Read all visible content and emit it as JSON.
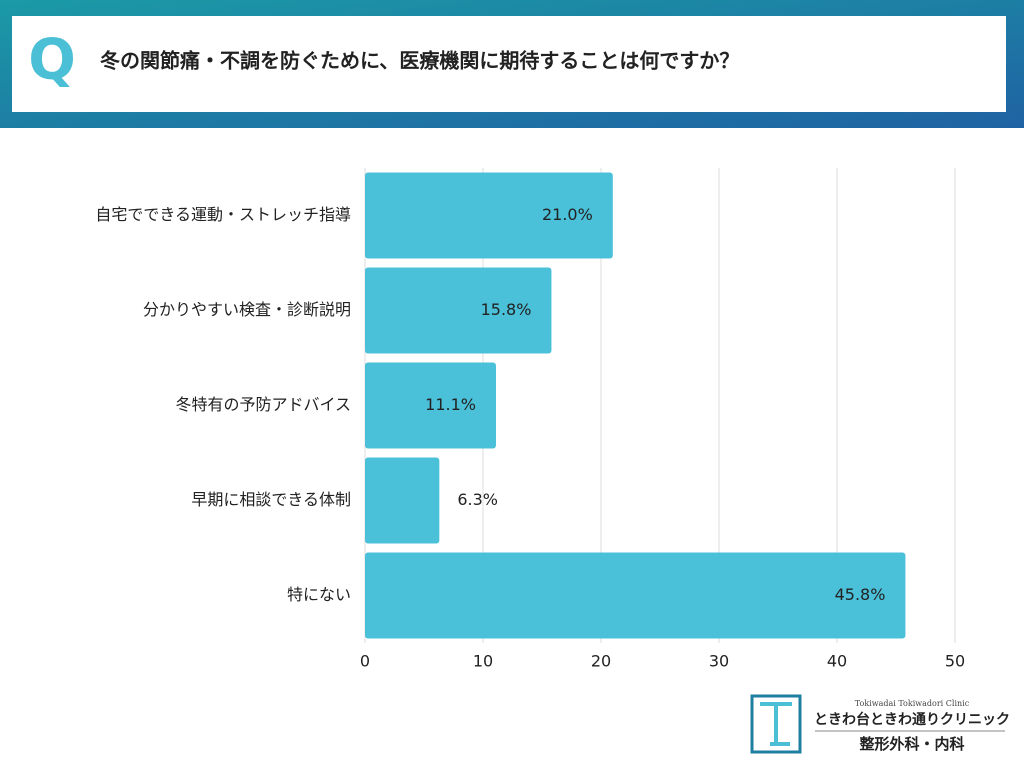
{
  "header_mark": "Q",
  "chart_data": {
    "type": "hbar",
    "title": "冬の関節痛・不調を防ぐために、医療機関に期待することは何ですか？",
    "categories": [
      "自宅でできる運動・ストレッチ指導",
      "分かりやすい検査・診断説明",
      "冬特有の予防アドバイス",
      "早期に相談できる体制",
      "特にない"
    ],
    "values": [
      21.0,
      15.8,
      11.1,
      6.3,
      45.8
    ],
    "value_labels": [
      "21.0%",
      "15.8%",
      "11.1%",
      "6.3%",
      "45.8%"
    ],
    "color": "#4bc0d9",
    "xlim": [
      0,
      50
    ],
    "xticks": [
      0,
      10,
      20,
      30,
      40,
      50
    ],
    "grid": true
  },
  "logo": {
    "english": "Tokiwadai Tokiwadori Clinic",
    "name": "ときわ台ときわ通りクリニック",
    "department": "整形外科・内科"
  }
}
